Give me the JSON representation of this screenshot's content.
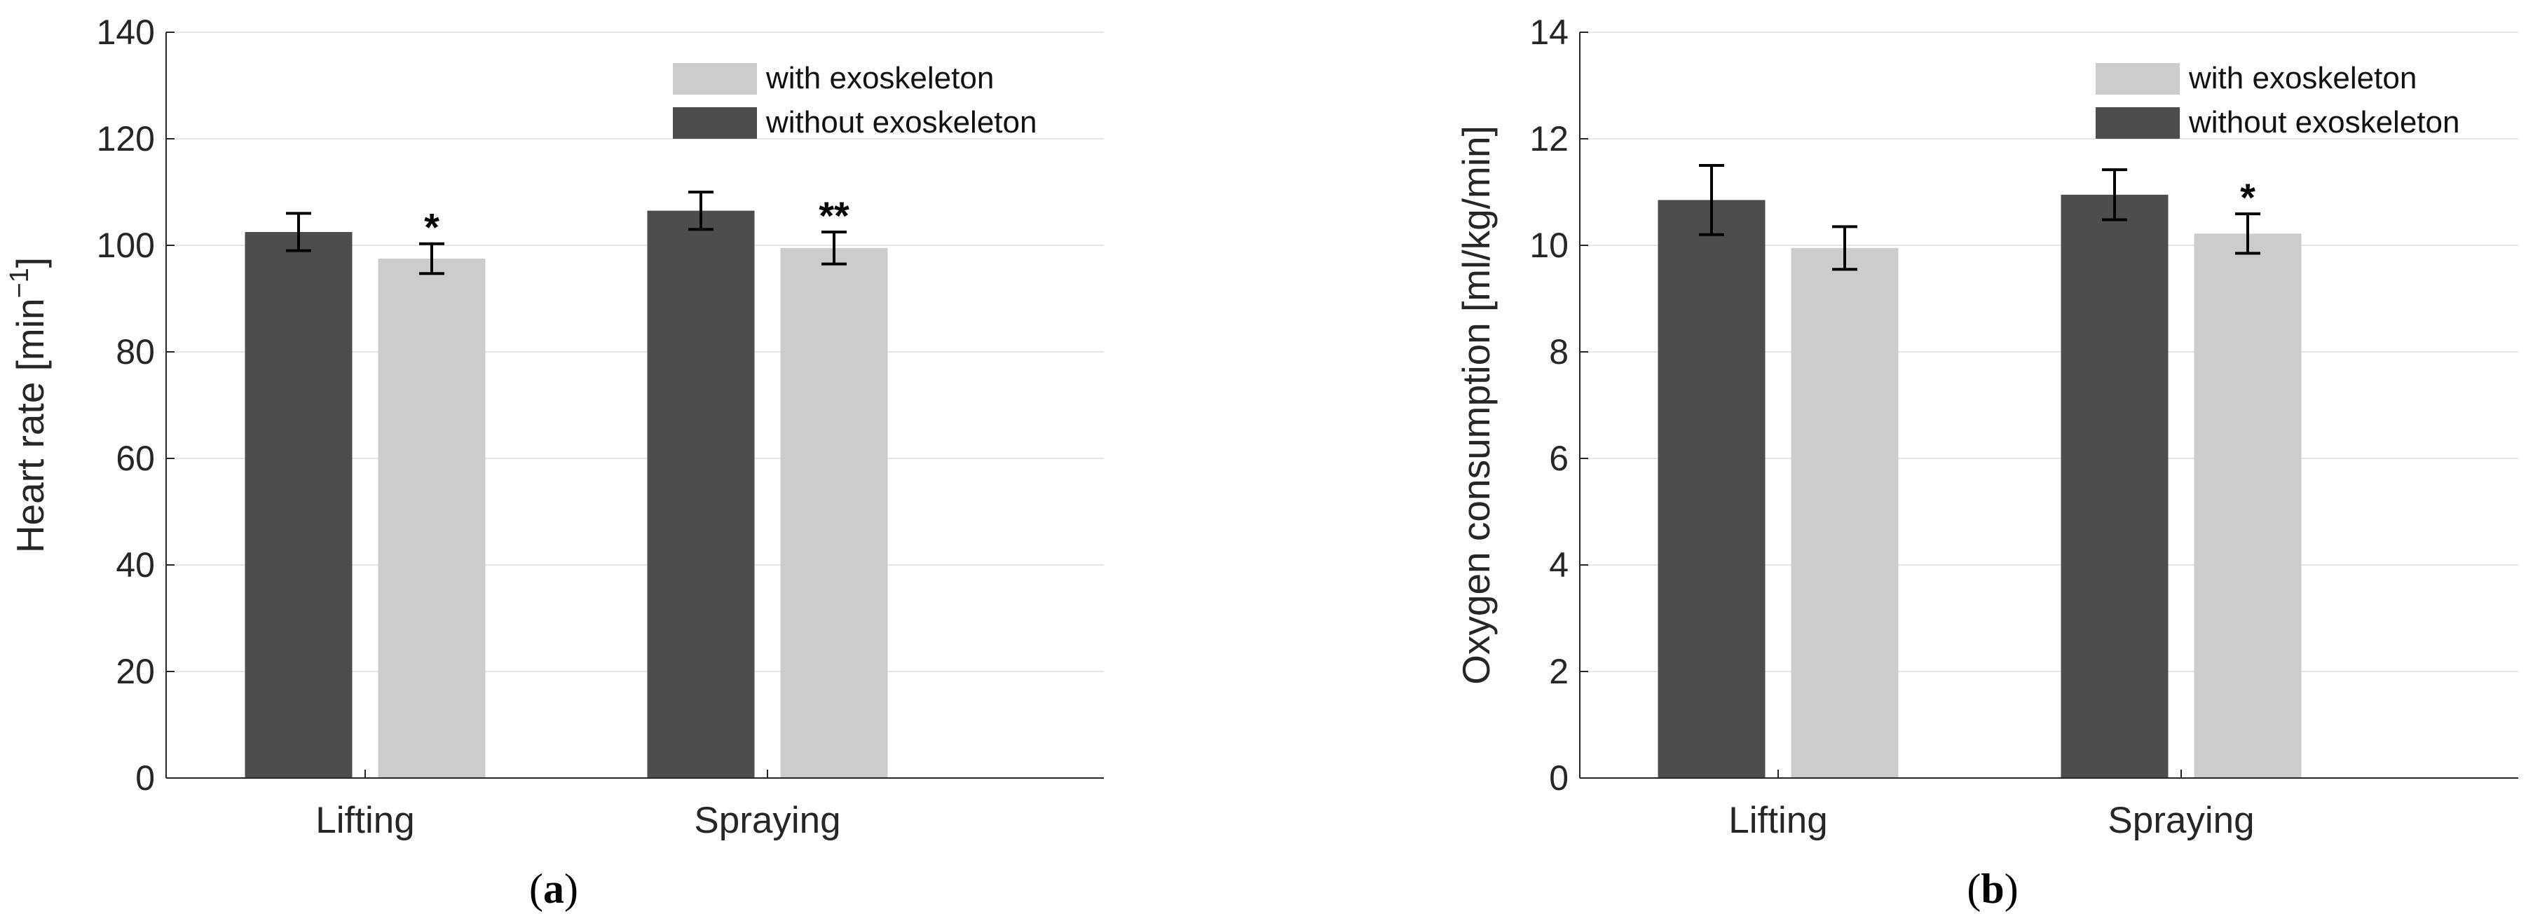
{
  "chart_data": [
    {
      "type": "bar",
      "panel_label": "a",
      "title": "",
      "xlabel": "",
      "ylabel": "Heart rate [min",
      "ylabel_superscript": "−1",
      "ylabel_suffix": "]",
      "categories": [
        "Lifting",
        "Spraying"
      ],
      "ylim": [
        0,
        140
      ],
      "yticks": [
        0,
        20,
        40,
        60,
        80,
        100,
        120,
        140
      ],
      "grid": true,
      "legend_position": "top-right",
      "series": [
        {
          "name": "without exoskeleton",
          "color": "#4d4d4d",
          "values": [
            102.5,
            106.5
          ],
          "errors": [
            3.5,
            3.5
          ],
          "significance": [
            "",
            ""
          ]
        },
        {
          "name": "with exoskeleton",
          "color": "#cccccc",
          "values": [
            97.5,
            99.5
          ],
          "errors": [
            2.8,
            3.0
          ],
          "significance": [
            "*",
            "**"
          ]
        }
      ],
      "legend": [
        "with exoskeleton",
        "without exoskeleton"
      ]
    },
    {
      "type": "bar",
      "panel_label": "b",
      "title": "",
      "xlabel": "",
      "ylabel": "Oxygen consumption [ml/kg/min]",
      "categories": [
        "Lifting",
        "Spraying"
      ],
      "ylim": [
        0,
        14
      ],
      "yticks": [
        0,
        2,
        4,
        6,
        8,
        10,
        12,
        14
      ],
      "grid": true,
      "legend_position": "top-right",
      "series": [
        {
          "name": "without exoskeleton",
          "color": "#4d4d4d",
          "values": [
            10.85,
            10.95
          ],
          "errors": [
            0.65,
            0.47
          ],
          "significance": [
            "",
            ""
          ]
        },
        {
          "name": "with exoskeleton",
          "color": "#cccccc",
          "values": [
            9.95,
            10.22
          ],
          "errors": [
            0.4,
            0.37
          ],
          "significance": [
            "",
            "*"
          ]
        }
      ],
      "legend": [
        "with exoskeleton",
        "without exoskeleton"
      ]
    }
  ]
}
